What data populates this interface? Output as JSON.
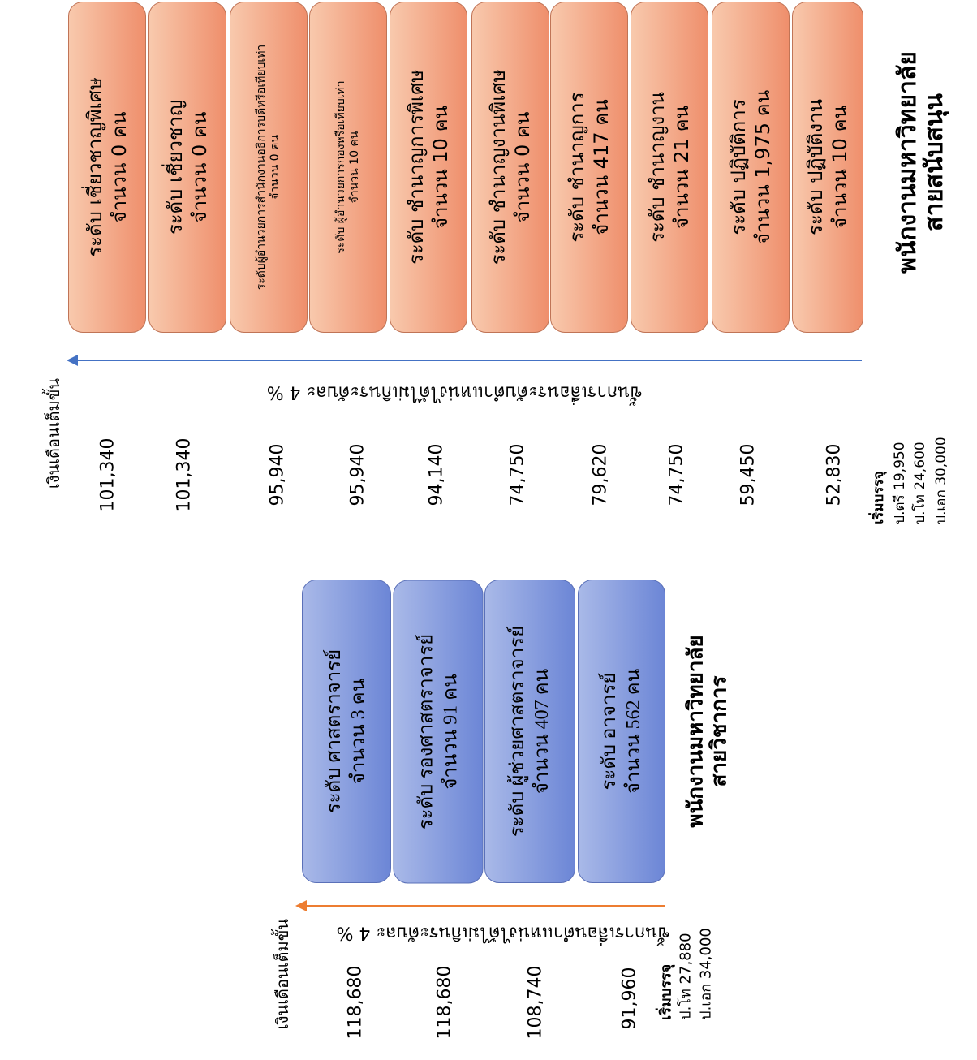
{
  "support": {
    "title_line1": "พนักงานมหาวิทยาลัย",
    "title_line2": "สายสนับสนุน",
    "arrow_label": "ขั้นการเลื่อนระดับตำแหน่งได้ไม่เกินระดับละ 4 %",
    "salary_header": "เงินเดือนเต็มขั้น",
    "entry": {
      "title": "เริ่มบรรจุ",
      "lines": [
        "ป.ตรี 19,950",
        "ป.โท 24,600",
        "ป.เอก 30,000"
      ]
    },
    "levels": [
      {
        "label": "ระดับ ปฏิบัติงาน",
        "count": "จำนวน 10 คน",
        "salary": "52,830"
      },
      {
        "label": "ระดับ ปฏิบัติการ",
        "count": "จำนวน 1,975 คน",
        "salary": "59,450"
      },
      {
        "label": "ระดับ ชำนาญงาน",
        "count": "จำนวน 21 คน",
        "salary": "74,750"
      },
      {
        "label": "ระดับ ชำนาญการ",
        "count": "จำนวน 417 คน",
        "salary": "79,620"
      },
      {
        "label": "ระดับ ชำนาญงานพิเศษ",
        "count": "จำนวน 0 คน",
        "salary": "74,750"
      },
      {
        "label": "ระดับ ชำนาญการพิเศษ",
        "count": "จำนวน 10 คน",
        "salary": "94,140"
      },
      {
        "label": "ระดับ ผู้อำนวยการกองหรือเทียบเท่า",
        "count": "จำนวน 10 คน",
        "salary": "95,940"
      },
      {
        "label": "ระดับผู้อำนวยการสำนักงานอธิการบดีหรือเทียบเท่า",
        "count": "จำนวน 0 คน",
        "salary": "95,940"
      },
      {
        "label": "ระดับ เชี่ยวชาญ",
        "count": "จำนวน 0 คน",
        "salary": "101,340"
      },
      {
        "label": "ระดับ เชี่ยวชาญพิเศษ",
        "count": "จำนวน 0 คน",
        "salary": "101,340"
      }
    ]
  },
  "academic": {
    "title_line1": "พนักงานมหาวิทยาลัย",
    "title_line2": "สายวิชาการ",
    "arrow_label": "ขั้นการเลื่อนตำแหน่งได้ไม่เกินระดับละ 4 %",
    "salary_header": "เงินเดือนเต็มขั้น",
    "entry": {
      "title": "เริ่มบรรจุ",
      "lines": [
        "ป.โท 27,880",
        "ป.เอก 34,000"
      ]
    },
    "levels": [
      {
        "label": "ระดับ อาจารย์",
        "count": "จำนวน 562 คน",
        "salary": "91,960"
      },
      {
        "label": "ระดับ ผู้ช่วยศาสตราจารย์",
        "count": "จำนวน 407 คน",
        "salary": "108,740"
      },
      {
        "label": "ระดับ รองศาสตราจารย์",
        "count": "จำนวน 91 คน",
        "salary": "118,680"
      },
      {
        "label": "ระดับ ศาสตราจารย์",
        "count": "จำนวน 3 คน",
        "salary": "118,680"
      }
    ]
  },
  "colors": {
    "support_box": "#f4a886",
    "academic_box": "#8ea1e0",
    "support_arrow": "#4472c4",
    "academic_arrow": "#ed7d31"
  }
}
